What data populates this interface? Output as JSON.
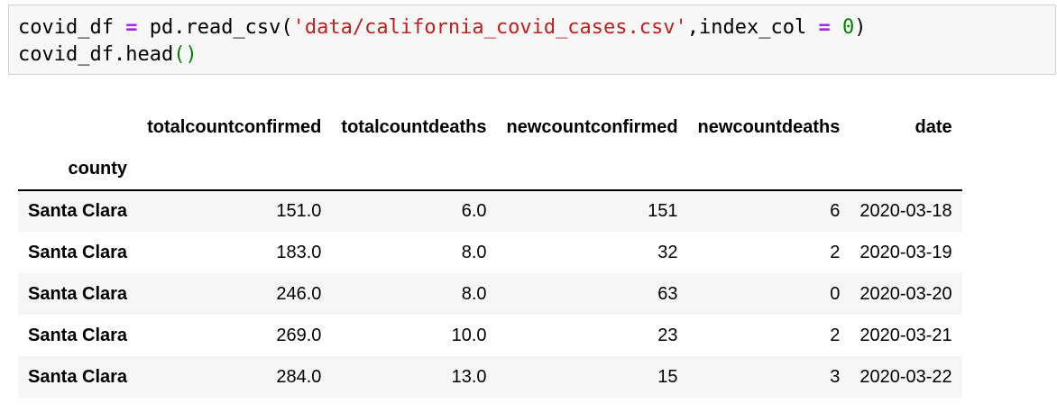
{
  "code_cell": {
    "line1": {
      "var": "covid_df",
      "assign": "=",
      "call": "pd.read_csv(",
      "path": "'data/california_covid_cases.csv'",
      "comma": ",index_col ",
      "assign2": "=",
      "index_val": "0",
      "close": ")"
    },
    "line2": {
      "call": "covid_df.head",
      "parens": "()"
    }
  },
  "dataframe": {
    "index_name": "county",
    "columns": [
      "totalcountconfirmed",
      "totalcountdeaths",
      "newcountconfirmed",
      "newcountdeaths",
      "date"
    ],
    "rows": [
      {
        "index": "Santa Clara",
        "cells": [
          "151.0",
          "6.0",
          "151",
          "6",
          "2020-03-18"
        ]
      },
      {
        "index": "Santa Clara",
        "cells": [
          "183.0",
          "8.0",
          "32",
          "2",
          "2020-03-19"
        ]
      },
      {
        "index": "Santa Clara",
        "cells": [
          "246.0",
          "8.0",
          "63",
          "0",
          "2020-03-20"
        ]
      },
      {
        "index": "Santa Clara",
        "cells": [
          "269.0",
          "10.0",
          "23",
          "2",
          "2020-03-21"
        ]
      },
      {
        "index": "Santa Clara",
        "cells": [
          "284.0",
          "13.0",
          "15",
          "3",
          "2020-03-22"
        ]
      }
    ]
  }
}
